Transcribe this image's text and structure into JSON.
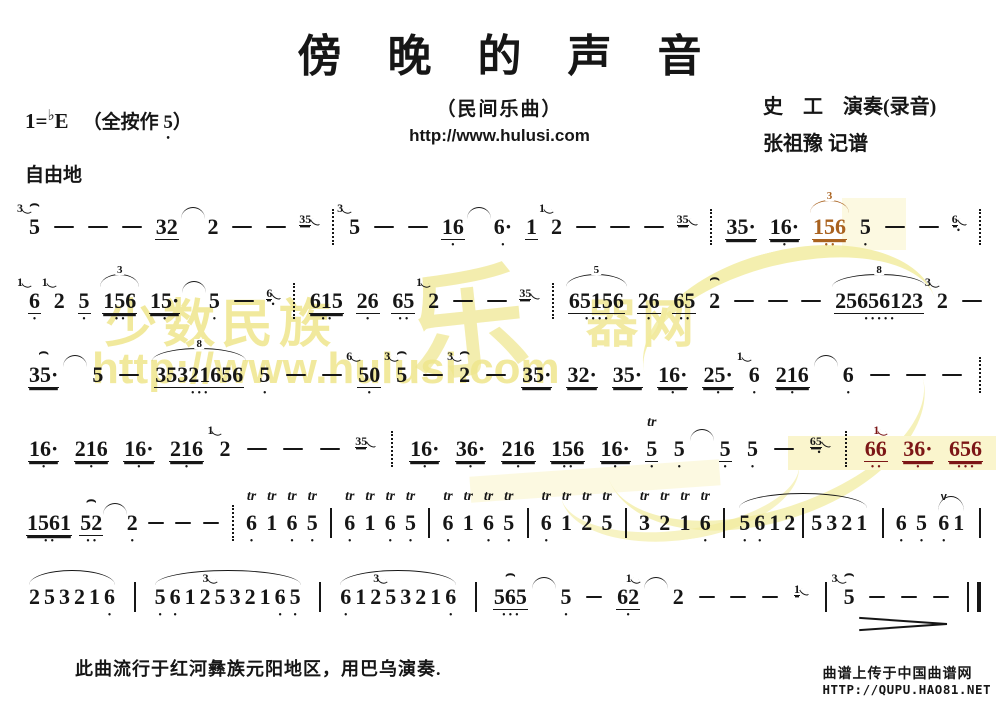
{
  "header": {
    "title": "傍晚的声音",
    "subtitle": "（民间乐曲）",
    "url": "http://www.hulusi.com",
    "performer": "史　工　演奏(录音)",
    "transcriber": "张祖豫 记谱",
    "key_prefix": "1=",
    "key_flat": "♭",
    "key_note": "E",
    "key_paren_open": "（全按作",
    "key_paren_note": "5",
    "key_note_dot": "•",
    "key_paren_close": "）",
    "tempo": "自由地"
  },
  "watermark": {
    "text1": "少数民族",
    "cal": "乐",
    "text2": "器网",
    "url": "http://www.hulusi.com"
  },
  "footer": {
    "note": "此曲流行于红河彝族元阳地区，用巴乌演奏.",
    "credit_line1": "曲谱上传于中国曲谱网",
    "credit_line2": "HTTP://QUPU.HAO81.NET"
  },
  "colors": {
    "ink": "#161616",
    "red": "#7c1616",
    "orange": "#a9621f"
  },
  "score": {
    "lines": [
      {
        "tokens": [
          {
            "d": "5",
            "g": "3",
            "hat": 1
          },
          {
            "dash": 1
          },
          {
            "dash": 1
          },
          {
            "dash": 1
          },
          {
            "d": "32",
            "u": 1
          },
          {
            "tie": 1
          },
          {
            "d": "2"
          },
          {
            "dash": 1
          },
          {
            "dash": 1
          },
          {
            "g2": "35"
          },
          {
            "bar": "d"
          },
          {
            "d": "5",
            "g": "3"
          },
          {
            "dash": 1
          },
          {
            "dash": 1
          },
          {
            "d": "16",
            "u": 1,
            "b": 1
          },
          {
            "tie": 1
          },
          {
            "d": "6",
            "b": 1,
            "dot": 1
          },
          {
            "d": "1",
            "u": 1
          },
          {
            "d": "2",
            "g": "1"
          },
          {
            "dash": 1
          },
          {
            "dash": 1
          },
          {
            "dash": 1
          },
          {
            "g2": "35"
          },
          {
            "bar": "d"
          },
          {
            "d": "35",
            "u": 2,
            "dot": 1
          },
          {
            "d": "16",
            "u": 2,
            "dot": 1,
            "b": 1
          },
          {
            "d": "156",
            "u": 2,
            "arc": "3",
            "b": 2,
            "c": "orange"
          },
          {
            "d": "5",
            "b": 1
          },
          {
            "dash": 1
          },
          {
            "dash": 1
          },
          {
            "g2": "6",
            "gb": 1
          },
          {
            "bar": "d"
          }
        ]
      },
      {
        "tokens": [
          {
            "d": "6",
            "g": "1",
            "u": 1,
            "b": 1
          },
          {
            "d": "2",
            "g": "1"
          },
          {
            "d": "5",
            "u": 1,
            "b": 1
          },
          {
            "d": "156",
            "u": 2,
            "arc": "3",
            "b": 2
          },
          {
            "d": "15",
            "u": 2,
            "dot": 1,
            "b": 1
          },
          {
            "tie": 1
          },
          {
            "d": "5",
            "b": 1
          },
          {
            "dash": 1
          },
          {
            "g2": "6",
            "gb": 1
          },
          {
            "bar": "d"
          },
          {
            "d": "615",
            "u": 2,
            "b": 2
          },
          {
            "d": "26",
            "u": 1,
            "b": 1
          },
          {
            "d": "65",
            "u": 1,
            "b": 2
          },
          {
            "d": "2",
            "g": "1"
          },
          {
            "dash": 1
          },
          {
            "dash": 1
          },
          {
            "g2": "35"
          },
          {
            "bar": "d"
          },
          {
            "d": "65156",
            "u": 1,
            "arc": "5",
            "b": 4
          },
          {
            "d": "26",
            "u": 1,
            "b": 1
          },
          {
            "d": "65",
            "u": 1,
            "b": 2
          },
          {
            "d": "2",
            "hat": 1
          },
          {
            "dash": 1
          },
          {
            "dash": 1
          },
          {
            "dash": 1
          },
          {
            "d": "25656123",
            "u": 1,
            "arc": "8",
            "b": 5
          },
          {
            "d": "2",
            "g": "3"
          },
          {
            "dash": 1
          }
        ]
      },
      {
        "tokens": [
          {
            "d": "35",
            "u": 2,
            "dot": 1,
            "hat": 1
          },
          {
            "tie": 1
          },
          {
            "d": "5"
          },
          {
            "dash": 1
          },
          {
            "d": "35321656",
            "u": 1,
            "arc": "8",
            "b": 3
          },
          {
            "d": "5",
            "b": 1
          },
          {
            "dash": 1
          },
          {
            "dash": 1
          },
          {
            "d": "50",
            "u": 1,
            "g": "6",
            "b": 1
          },
          {
            "d": "5",
            "g": "3",
            "hat": 1
          },
          {
            "dash": 1
          },
          {
            "d": "2",
            "g": "3",
            "hat": 1
          },
          {
            "dash": 1
          },
          {
            "d": "35",
            "u": 2,
            "dot": 1
          },
          {
            "d": "32",
            "u": 2,
            "dot": 1
          },
          {
            "d": "35",
            "u": 2,
            "dot": 1
          },
          {
            "d": "16",
            "u": 2,
            "dot": 1,
            "b": 1
          },
          {
            "d": "25",
            "u": 2,
            "dot": 1,
            "b": 1
          },
          {
            "d": "6",
            "g": "1",
            "b": 1
          },
          {
            "d": "216",
            "u": 2,
            "b": 1
          },
          {
            "tie": 1
          },
          {
            "d": "6",
            "b": 1
          },
          {
            "dash": 1
          },
          {
            "dash": 1
          },
          {
            "dash": 1
          },
          {
            "bar": "d"
          }
        ]
      },
      {
        "tokens": [
          {
            "d": "16",
            "u": 2,
            "dot": 1,
            "b": 1
          },
          {
            "d": "216",
            "u": 2,
            "b": 1
          },
          {
            "d": "16",
            "u": 2,
            "dot": 1,
            "b": 1
          },
          {
            "d": "216",
            "u": 2,
            "b": 1
          },
          {
            "d": "2",
            "g": "1"
          },
          {
            "dash": 1
          },
          {
            "dash": 1
          },
          {
            "dash": 1
          },
          {
            "g2": "35"
          },
          {
            "bar": "d"
          },
          {
            "d": "16",
            "u": 2,
            "dot": 1,
            "b": 1
          },
          {
            "d": "36",
            "u": 2,
            "dot": 1,
            "b": 1
          },
          {
            "d": "216",
            "u": 2,
            "b": 1
          },
          {
            "d": "156",
            "u": 2,
            "b": 2
          },
          {
            "d": "16",
            "u": 2,
            "dot": 1,
            "b": 1
          },
          {
            "d": "5",
            "u": 1,
            "b": 1,
            "tr": 1
          },
          {
            "d": "5",
            "b": 1
          },
          {
            "tie": 1
          },
          {
            "d": "5",
            "u": 1,
            "b": 1
          },
          {
            "d": "5",
            "b": 1
          },
          {
            "dash": 1
          },
          {
            "g2": "65",
            "gb": 1
          },
          {
            "bar": "d"
          },
          {
            "d": "66",
            "u": 1,
            "b": 2,
            "c": "red",
            "g": "1",
            "gm": 1
          },
          {
            "d": "36",
            "u": 2,
            "dot": 1,
            "b": 1,
            "c": "red"
          },
          {
            "d": "656",
            "u": 2,
            "b": 3,
            "c": "red"
          }
        ]
      },
      {
        "tokens": [
          {
            "d": "1561",
            "u": 2,
            "b": 2
          },
          {
            "d": "52",
            "u": 1,
            "b": 2,
            "hat": 1
          },
          {
            "tie": 1
          },
          {
            "d": "2",
            "b": 1
          },
          {
            "dash": 1
          },
          {
            "dash": 1
          },
          {
            "dash": 1
          },
          {
            "bar": "d"
          },
          {
            "d": "6",
            "b": 1,
            "tr": 1
          },
          {
            "d": "1",
            "tr": 1
          },
          {
            "d": "6",
            "b": 1,
            "tr": 1
          },
          {
            "d": "5",
            "b": 1,
            "tr": 1
          },
          {
            "bar": "s"
          },
          {
            "d": "6",
            "b": 1,
            "tr": 1
          },
          {
            "d": "1",
            "tr": 1
          },
          {
            "d": "6",
            "b": 1,
            "tr": 1
          },
          {
            "d": "5",
            "b": 1,
            "tr": 1
          },
          {
            "bar": "s"
          },
          {
            "d": "6",
            "b": 1,
            "tr": 1
          },
          {
            "d": "1",
            "tr": 1
          },
          {
            "d": "6",
            "b": 1,
            "tr": 1
          },
          {
            "d": "5",
            "b": 1,
            "tr": 1
          },
          {
            "bar": "s"
          },
          {
            "d": "6",
            "b": 1,
            "tr": 1
          },
          {
            "d": "1",
            "tr": 1
          },
          {
            "d": "2",
            "tr": 1
          },
          {
            "d": "5",
            "tr": 1
          },
          {
            "bar": "s"
          },
          {
            "d": "3",
            "tr": 1
          },
          {
            "d": "2",
            "tr": 1
          },
          {
            "d": "1",
            "tr": 1
          },
          {
            "d": "6",
            "b": 1,
            "tr": 1
          },
          {
            "bar": "s"
          },
          {
            "slur": [
              {
                "d": "5",
                "b": 1
              },
              {
                "d": "6",
                "b": 1
              },
              {
                "d": "1"
              },
              {
                "d": "2"
              },
              {
                "bar": "s"
              },
              {
                "d": "5"
              },
              {
                "d": "3"
              },
              {
                "d": "2"
              },
              {
                "d": "1"
              }
            ]
          },
          {
            "bar": "s"
          },
          {
            "d": "6",
            "b": 1
          },
          {
            "d": "5",
            "b": 1
          },
          {
            "slur": [
              {
                "d": "6",
                "b": 1,
                "v": 1
              },
              {
                "d": "1"
              }
            ]
          },
          {
            "bar": "s"
          }
        ]
      },
      {
        "tokens": [
          {
            "slur": [
              {
                "d": "2"
              },
              {
                "d": "5"
              },
              {
                "d": "3"
              },
              {
                "d": "2"
              },
              {
                "d": "1"
              },
              {
                "d": "6",
                "b": 1
              }
            ]
          },
          {
            "bar": "s"
          },
          {
            "slur": [
              {
                "d": "5",
                "b": 1
              },
              {
                "d": "6",
                "b": 1
              },
              {
                "d": "1"
              },
              {
                "d": "2"
              },
              {
                "d": "5",
                "g": "3"
              },
              {
                "d": "3"
              },
              {
                "d": "2"
              },
              {
                "d": "1"
              },
              {
                "d": "6",
                "b": 1
              },
              {
                "d": "5",
                "b": 1
              }
            ]
          },
          {
            "bar": "s"
          },
          {
            "slur": [
              {
                "d": "6",
                "b": 1
              },
              {
                "d": "1"
              },
              {
                "d": "2"
              },
              {
                "d": "5",
                "g": "3"
              },
              {
                "d": "3"
              },
              {
                "d": "2"
              },
              {
                "d": "1"
              },
              {
                "d": "6",
                "b": 1
              }
            ]
          },
          {
            "bar": "s"
          },
          {
            "d": "565",
            "u": 1,
            "b": 3,
            "hat": 1
          },
          {
            "tie": 1
          },
          {
            "d": "5",
            "b": 1
          },
          {
            "dash": 1
          },
          {
            "d": "62",
            "u": 1,
            "b": 1,
            "g": "1",
            "gm": 1
          },
          {
            "tie": 1
          },
          {
            "d": "2"
          },
          {
            "dash": 1
          },
          {
            "dash": 1
          },
          {
            "dash": 1
          },
          {
            "g2": "1"
          },
          {
            "bar": "s"
          },
          {
            "d": "5",
            "g": "3",
            "hat": 1,
            "hp": 1
          },
          {
            "dash": 1
          },
          {
            "dash": 1
          },
          {
            "dash": 1
          },
          {
            "bar": "f"
          }
        ]
      }
    ]
  }
}
